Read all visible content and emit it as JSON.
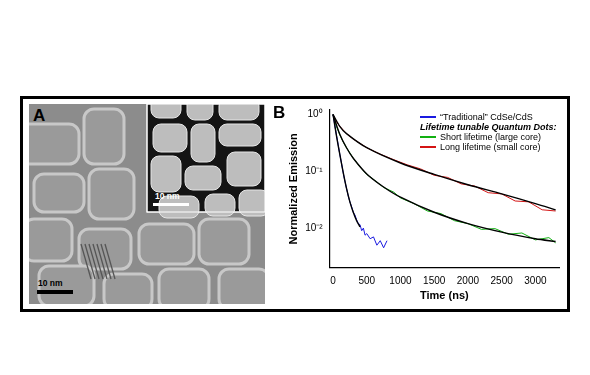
{
  "panel_a": {
    "label": "A",
    "scale_bars": [
      "10 nm",
      "10 nm"
    ]
  },
  "chart_data": {
    "type": "line",
    "panel_label": "B",
    "x_label": "Time (ns)",
    "y_label": "Normalized Emission",
    "log": "y",
    "grid": false,
    "legend": "upper right",
    "legend_heading": "Lifetime tunable Quantum Dots:",
    "xlim": [
      -50,
      3350
    ],
    "xticks": [
      0,
      500,
      1000,
      1500,
      2000,
      2500,
      3000
    ],
    "ylim": [
      0.002,
      1.2
    ],
    "yticks": [
      {
        "value": 1,
        "label": "10⁰"
      },
      {
        "value": 0.1,
        "label": "10⁻¹"
      },
      {
        "value": 0.01,
        "label": "10⁻²"
      }
    ],
    "series": [
      {
        "name": "“Traditional” CdSe/CdS",
        "color": "#1a1ae0",
        "x": [
          0,
          25,
          50,
          75,
          100,
          125,
          150,
          175,
          200,
          225,
          250,
          275,
          300,
          325,
          350,
          375,
          400,
          425,
          450,
          475,
          500,
          550,
          600,
          650,
          700,
          750,
          800
        ],
        "values": [
          1,
          0.66,
          0.44,
          0.3,
          0.2,
          0.14,
          0.095,
          0.068,
          0.05,
          0.037,
          0.029,
          0.024,
          0.019,
          0.017,
          0.014,
          0.012,
          0.0115,
          0.009,
          0.01,
          0.0075,
          0.008,
          0.0065,
          0.007,
          0.005,
          0.006,
          0.0045,
          0.006
        ],
        "fit": {
          "color": "#000000",
          "x": [
            0,
            50,
            100,
            150,
            200,
            250,
            300,
            350,
            400
          ],
          "values": [
            1,
            0.43,
            0.2,
            0.097,
            0.05,
            0.029,
            0.019,
            0.0135,
            0.0105
          ]
        }
      },
      {
        "name": "Short lifetime (large core)",
        "color": "#12b012",
        "x": [
          0,
          50,
          100,
          150,
          200,
          300,
          400,
          500,
          600,
          750,
          900,
          1000,
          1200,
          1400,
          1600,
          1800,
          2000,
          2200,
          2400,
          2600,
          2800,
          3000,
          3200,
          3300
        ],
        "values": [
          1,
          0.62,
          0.44,
          0.33,
          0.26,
          0.17,
          0.12,
          0.088,
          0.072,
          0.052,
          0.043,
          0.034,
          0.027,
          0.02,
          0.018,
          0.0135,
          0.012,
          0.0095,
          0.0098,
          0.0078,
          0.0082,
          0.0062,
          0.0068,
          0.0055
        ],
        "fit": {
          "color": "#000000",
          "x": [
            0,
            100,
            200,
            300,
            500,
            750,
            1000,
            1500,
            2000,
            2500,
            3000,
            3300
          ],
          "values": [
            1,
            0.45,
            0.26,
            0.17,
            0.09,
            0.053,
            0.035,
            0.019,
            0.012,
            0.0085,
            0.0065,
            0.0058
          ]
        }
      },
      {
        "name": "Long lifetime (small core)",
        "color": "#d41414",
        "x": [
          0,
          50,
          100,
          200,
          300,
          400,
          500,
          700,
          900,
          1100,
          1300,
          1500,
          1700,
          1900,
          2100,
          2300,
          2500,
          2700,
          2900,
          3100,
          3300
        ],
        "values": [
          1,
          0.75,
          0.62,
          0.46,
          0.37,
          0.31,
          0.26,
          0.2,
          0.16,
          0.13,
          0.11,
          0.085,
          0.078,
          0.06,
          0.055,
          0.042,
          0.04,
          0.03,
          0.029,
          0.021,
          0.02
        ],
        "fit": {
          "color": "#000000",
          "x": [
            0,
            100,
            200,
            500,
            1000,
            1500,
            2000,
            2500,
            3000,
            3300
          ],
          "values": [
            1,
            0.62,
            0.46,
            0.26,
            0.14,
            0.088,
            0.058,
            0.04,
            0.027,
            0.021
          ]
        }
      }
    ]
  }
}
